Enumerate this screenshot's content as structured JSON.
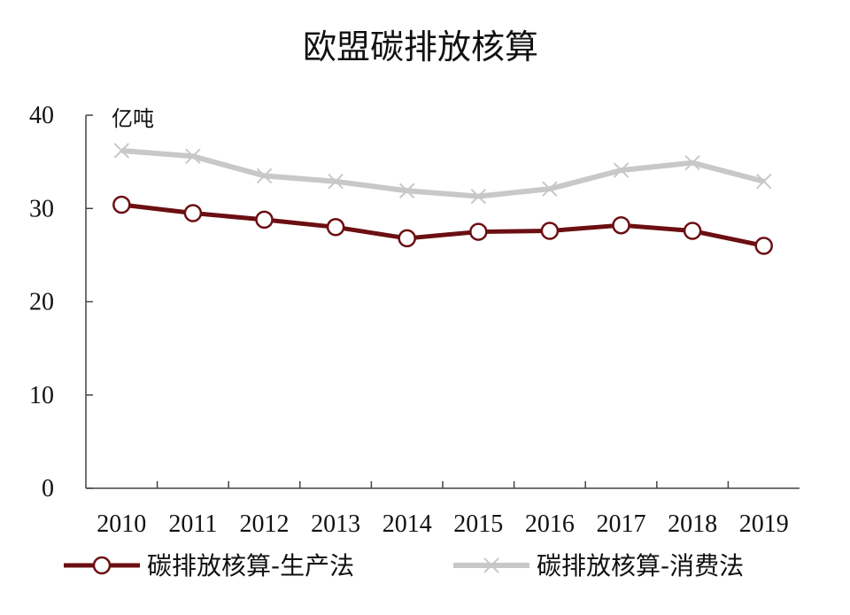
{
  "chart_data": {
    "type": "line",
    "title": "欧盟碳排放核算",
    "unit_label": "亿吨",
    "categories": [
      "2010",
      "2011",
      "2012",
      "2013",
      "2014",
      "2015",
      "2016",
      "2017",
      "2018",
      "2019"
    ],
    "ylim": [
      0,
      40
    ],
    "yticks": [
      0,
      10,
      20,
      30,
      40
    ],
    "grid": false,
    "legend_position": "bottom",
    "series": [
      {
        "name": "碳排放核算-生产法",
        "values": [
          30.4,
          29.5,
          28.8,
          28.0,
          26.8,
          27.5,
          27.6,
          28.2,
          27.6,
          26.0
        ],
        "color": "#6b0f12",
        "marker": "circle"
      },
      {
        "name": "碳排放核算-消费法",
        "values": [
          36.2,
          35.6,
          33.5,
          32.9,
          31.9,
          31.3,
          32.1,
          34.1,
          34.9,
          32.9
        ],
        "color": "#c8c8c8",
        "marker": "x"
      }
    ]
  }
}
